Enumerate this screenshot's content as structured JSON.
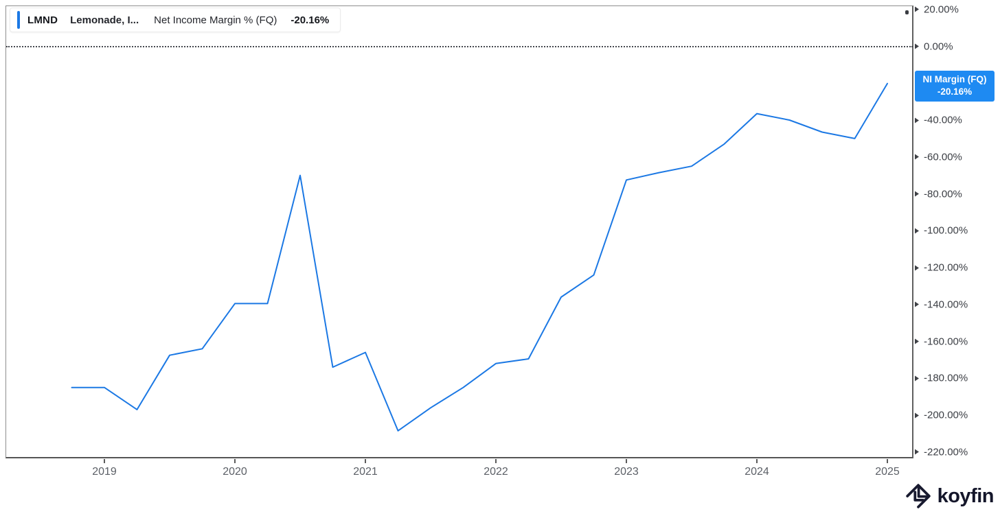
{
  "legend": {
    "ticker": "LMND",
    "company": "Lemonade, I...",
    "metric": "Net Income Margin % (FQ)",
    "value": "-20.16%"
  },
  "badge": {
    "line1": "NI Margin (FQ)",
    "line2": "-20.16%"
  },
  "colors": {
    "line": "#1b78e4",
    "badge": "#1e8af2",
    "accent_bar": "#1b78e4"
  },
  "y_axis": {
    "ticks": [
      {
        "label": "20.00%",
        "value": 20
      },
      {
        "label": "0.00%",
        "value": 0
      },
      {
        "label": "-40.00%",
        "value": -40
      },
      {
        "label": "-60.00%",
        "value": -60
      },
      {
        "label": "-80.00%",
        "value": -80
      },
      {
        "label": "-100.00%",
        "value": -100
      },
      {
        "label": "-120.00%",
        "value": -120
      },
      {
        "label": "-140.00%",
        "value": -140
      },
      {
        "label": "-160.00%",
        "value": -160
      },
      {
        "label": "-180.00%",
        "value": -180
      },
      {
        "label": "-200.00%",
        "value": -200
      },
      {
        "label": "-220.00%",
        "value": -220
      }
    ]
  },
  "x_axis": {
    "ticks": [
      {
        "label": "2019",
        "year": 2019
      },
      {
        "label": "2020",
        "year": 2020
      },
      {
        "label": "2021",
        "year": 2021
      },
      {
        "label": "2022",
        "year": 2022
      },
      {
        "label": "2023",
        "year": 2023
      },
      {
        "label": "2024",
        "year": 2024
      },
      {
        "label": "2025",
        "year": 2025
      }
    ]
  },
  "chart_data": {
    "type": "line",
    "title": "LMND Lemonade, Inc. — Net Income Margin % (FQ)",
    "x": [
      "2018 Q4",
      "2019 Q1",
      "2019 Q2",
      "2019 Q3",
      "2019 Q4",
      "2020 Q1",
      "2020 Q2",
      "2020 Q3",
      "2020 Q4",
      "2021 Q1",
      "2021 Q2",
      "2021 Q3",
      "2021 Q4",
      "2022 Q1",
      "2022 Q2",
      "2022 Q3",
      "2022 Q4",
      "2023 Q1",
      "2023 Q2",
      "2023 Q3",
      "2023 Q4",
      "2024 Q1",
      "2024 Q2",
      "2024 Q3",
      "2024 Q4",
      "2025 Q1"
    ],
    "series": [
      {
        "name": "Net Income Margin % (FQ)",
        "values": [
          -185,
          -185,
          -197,
          -167.5,
          -164,
          -139.5,
          -139.5,
          -70,
          -174,
          -166,
          -208.5,
          -196,
          -185,
          -172,
          -169.5,
          -136,
          -124,
          -72.5,
          -68.5,
          -65,
          -53,
          -36.5,
          -40,
          -46.5,
          -50,
          -20.16
        ]
      }
    ],
    "ylabel": "Net Income Margin %",
    "xlabel": "",
    "ylim": [
      -220,
      20
    ],
    "y_tick_step": 20,
    "zero_line": "dotted",
    "grid": false,
    "legend_position": "top-left",
    "last_value_label": "-20.16%"
  },
  "watermark": {
    "brand": "koyfin"
  }
}
